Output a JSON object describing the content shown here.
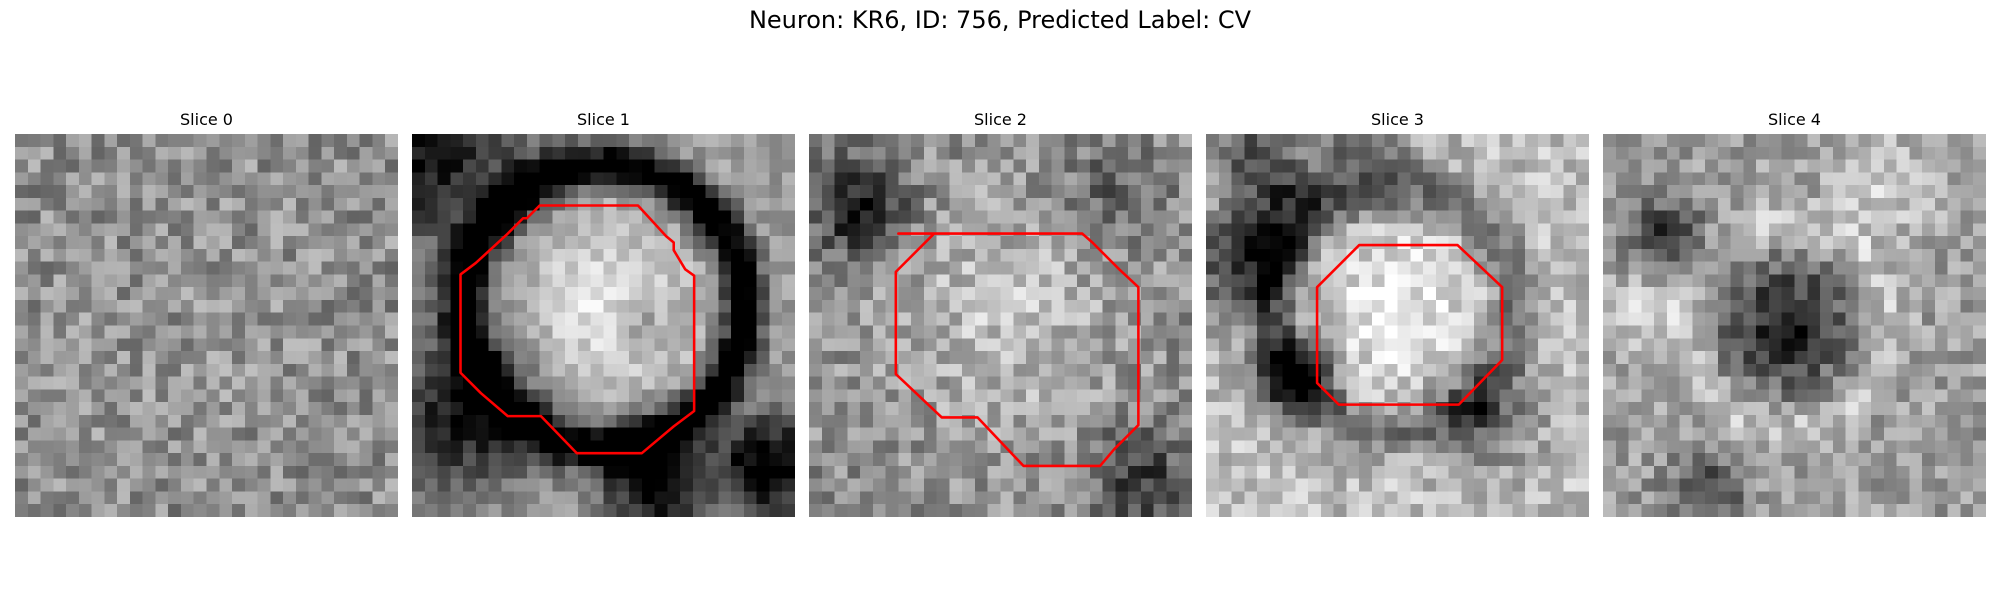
{
  "figure": {
    "title": "Neuron: KR6, ID: 756, Predicted Label: CV"
  },
  "slices": [
    {
      "title": "Slice 0",
      "has_outline": false,
      "seed": 11,
      "bg": 0.56,
      "contrast": 0.18,
      "features": [
        [
          15,
          15,
          9,
          0.02
        ]
      ]
    },
    {
      "title": "Slice 1",
      "has_outline": true,
      "seed": 23,
      "bg": 0.62,
      "contrast": 0.12,
      "features": [
        [
          15,
          13.5,
          11,
          -0.75,
          1.7
        ],
        [
          15,
          13.5,
          7.2,
          0.28
        ],
        [
          1,
          1,
          8,
          -0.55
        ],
        [
          28,
          26,
          4,
          -0.7
        ],
        [
          19,
          27,
          4,
          -0.7
        ],
        [
          4,
          22,
          6,
          -0.55
        ],
        [
          18,
          15,
          2,
          -0.22
        ]
      ],
      "outline": [
        [
          11.1,
          5.6
        ],
        [
          10.0,
          5.6
        ],
        [
          9.0,
          6.6
        ],
        [
          8.7,
          6.6
        ],
        [
          7.4,
          7.9
        ],
        [
          5.0,
          10.1
        ],
        [
          3.8,
          11.0
        ],
        [
          3.8,
          18.7
        ],
        [
          5.4,
          20.3
        ],
        [
          7.5,
          22.1
        ],
        [
          10.1,
          22.1
        ],
        [
          12.9,
          25.0
        ],
        [
          18.0,
          25.0
        ],
        [
          20.5,
          22.9
        ],
        [
          22.1,
          21.7
        ],
        [
          22.1,
          11.1
        ],
        [
          21.4,
          10.6
        ],
        [
          20.5,
          9.1
        ],
        [
          20.5,
          8.5
        ],
        [
          19.9,
          8.0
        ],
        [
          17.7,
          5.6
        ]
      ]
    },
    {
      "title": "Slice 2",
      "has_outline": true,
      "seed": 37,
      "bg": 0.56,
      "contrast": 0.18,
      "features": [
        [
          15,
          14,
          9,
          0.2
        ],
        [
          4,
          6,
          4,
          -0.45
        ],
        [
          26,
          27,
          4,
          -0.35
        ],
        [
          24,
          4,
          4,
          -0.2
        ]
      ],
      "outline": [
        [
          7.0,
          7.8
        ],
        [
          21.4,
          7.8
        ],
        [
          22.2,
          8.5
        ],
        [
          24.3,
          10.6
        ],
        [
          25.8,
          12.0
        ],
        [
          25.8,
          22.8
        ],
        [
          23.9,
          24.7
        ],
        [
          22.8,
          26.0
        ],
        [
          16.8,
          26.0
        ],
        [
          13.2,
          22.2
        ],
        [
          10.4,
          22.2
        ],
        [
          6.8,
          18.8
        ],
        [
          6.8,
          10.8
        ],
        [
          9.8,
          7.8
        ]
      ]
    },
    {
      "title": "Slice 3",
      "has_outline": true,
      "seed": 41,
      "bg": 0.74,
      "contrast": 0.16,
      "features": [
        [
          14.7,
          13.8,
          6,
          0.18
        ],
        [
          14.7,
          13.8,
          9.5,
          -0.32,
          1.8
        ],
        [
          3,
          10,
          4,
          -0.6
        ],
        [
          6,
          5,
          3,
          -0.45
        ],
        [
          7,
          19,
          3,
          -0.7
        ],
        [
          3,
          1,
          3,
          -0.4
        ],
        [
          12,
          1,
          4,
          -0.4
        ],
        [
          22,
          22,
          4,
          -0.35
        ]
      ],
      "outline": [
        [
          12.3,
          8.7
        ],
        [
          19.7,
          8.7
        ],
        [
          23.2,
          12.0
        ],
        [
          23.2,
          17.7
        ],
        [
          19.8,
          21.2
        ],
        [
          10.4,
          21.2
        ],
        [
          8.7,
          19.5
        ],
        [
          8.7,
          12.0
        ],
        [
          12.0,
          8.7
        ]
      ]
    },
    {
      "title": "Slice 4",
      "has_outline": false,
      "seed": 53,
      "bg": 0.62,
      "contrast": 0.16,
      "features": [
        [
          14.5,
          15,
          5,
          -0.5
        ],
        [
          14.5,
          15,
          8,
          0.18,
          1.6
        ],
        [
          5,
          8,
          3,
          -0.4
        ],
        [
          3,
          14,
          3,
          0.22
        ],
        [
          22,
          4,
          4,
          0.2
        ],
        [
          8,
          28,
          3,
          -0.35
        ]
      ]
    }
  ],
  "colors": {
    "outline": "#ff0000"
  }
}
